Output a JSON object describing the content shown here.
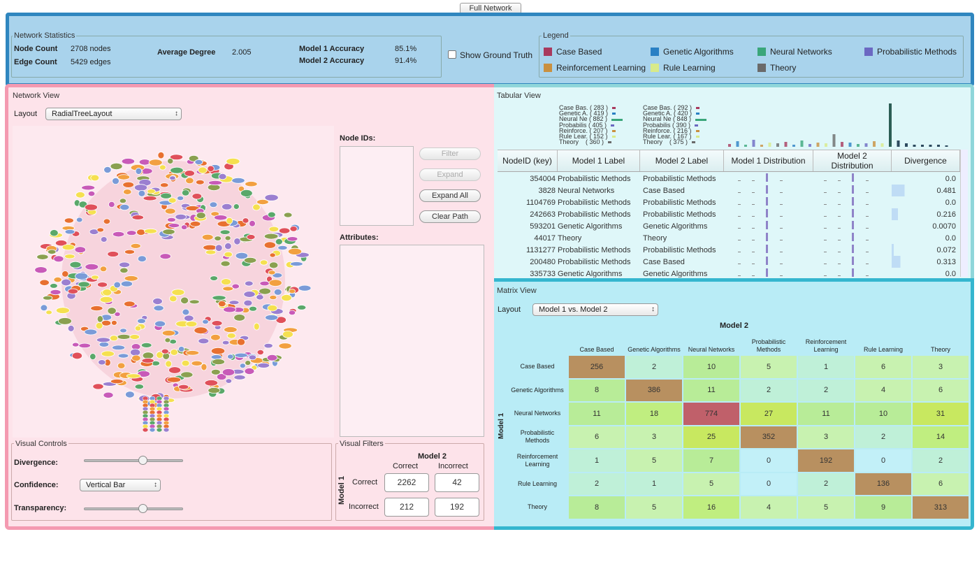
{
  "top_button": "Full Network",
  "stats": {
    "title": "Network Statistics",
    "node_count_label": "Node Count",
    "node_count_value": "2708 nodes",
    "edge_count_label": "Edge Count",
    "edge_count_value": "5429 edges",
    "avg_degree_label": "Average Degree",
    "avg_degree_value": "2.005",
    "m1_acc_label": "Model 1 Accuracy",
    "m1_acc_value": "85.1%",
    "m2_acc_label": "Model 2 Accuracy",
    "m2_acc_value": "91.4%"
  },
  "show_ground_truth": "Show Ground Truth",
  "legend": {
    "title": "Legend",
    "items": [
      {
        "label": "Case Based",
        "color": "#a83a5e"
      },
      {
        "label": "Genetic Algorithms",
        "color": "#2a80c4"
      },
      {
        "label": "Neural Networks",
        "color": "#3aa67a"
      },
      {
        "label": "Probabilistic Methods",
        "color": "#6b68c2"
      },
      {
        "label": "Reinforcement Learning",
        "color": "#c99040"
      },
      {
        "label": "Rule Learning",
        "color": "#d8ea8a"
      },
      {
        "label": "Theory",
        "color": "#6a6a6a"
      }
    ]
  },
  "network_view": {
    "title": "Network View",
    "layout_label": "Layout",
    "layout_value": "RadialTreeLayout",
    "node_ids_label": "Node IDs:",
    "attributes_label": "Attributes:",
    "buttons": {
      "filter": "Filter",
      "expand": "Expand",
      "expand_all": "Expand All",
      "clear_path": "Clear Path"
    }
  },
  "visual_controls": {
    "title": "Visual Controls",
    "divergence": "Divergence:",
    "confidence": "Confidence:",
    "confidence_value": "Vertical Bar",
    "transparency": "Transparency:",
    "divergence_level": 0.6,
    "transparency_level": 0.6
  },
  "visual_filters": {
    "title": "Visual Filters",
    "model2": "Model 2",
    "model1": "Model 1",
    "correct": "Correct",
    "incorrect": "Incorrect",
    "cc": "2262",
    "ci": "42",
    "ic": "212",
    "ii": "192"
  },
  "tabular": {
    "title": "Tabular View",
    "summary_left": [
      "Case Bas. ( 283 )",
      "Genetic A. ( 419 )",
      "Neural Ne ( 882 )",
      "Probabilis ( 405 )",
      "Reinforce. ( 207 )",
      "Rule Lear. ( 152 )",
      "Theory    ( 360 )"
    ],
    "summary_right": [
      "Case Bas. ( 292 )",
      "Genetic A. ( 420 )",
      "Neural Ne ( 848 )",
      "Probabilis ( 390 )",
      "Reinforce. ( 216 )",
      "Rule Lear. ( 167 )",
      "Theory    ( 375 )"
    ],
    "headers": [
      "NodeID (key)",
      "Model 1 Label",
      "Model 2 Label",
      "Model 1 Distribution",
      "Model 2 Distribution",
      "Divergence"
    ],
    "rows": [
      {
        "id": "354004",
        "m1": "Probabilistic Methods",
        "m2": "Probabilistic Methods",
        "div": "0.0"
      },
      {
        "id": "3828",
        "m1": "Neural Networks",
        "m2": "Case Based",
        "div": "0.481"
      },
      {
        "id": "1104769",
        "m1": "Probabilistic Methods",
        "m2": "Probabilistic Methods",
        "div": "0.0"
      },
      {
        "id": "242663",
        "m1": "Probabilistic Methods",
        "m2": "Probabilistic Methods",
        "div": "0.216"
      },
      {
        "id": "593201",
        "m1": "Genetic Algorithms",
        "m2": "Genetic Algorithms",
        "div": "0.0070"
      },
      {
        "id": "44017",
        "m1": "Theory",
        "m2": "Theory",
        "div": "0.0"
      },
      {
        "id": "1131277",
        "m1": "Probabilistic Methods",
        "m2": "Probabilistic Methods",
        "div": "0.072"
      },
      {
        "id": "200480",
        "m1": "Probabilistic Methods",
        "m2": "Case Based",
        "div": "0.313"
      },
      {
        "id": "335733",
        "m1": "Genetic Algorithms",
        "m2": "Genetic Algorithms",
        "div": "0.0"
      }
    ]
  },
  "matrix": {
    "title": "Matrix View",
    "layout_label": "Layout",
    "layout_value": "Model 1 vs. Model 2",
    "col_axis": "Model 2",
    "row_axis": "Model 1",
    "cols": [
      "Case Based",
      "Genetic Algorithms",
      "Neural Networks",
      "Probabilistic Methods",
      "Reinforcement Learning",
      "Rule Learning",
      "Theory"
    ],
    "rows": [
      "Case Based",
      "Genetic Algorithms",
      "Neural Networks",
      "Probabilistic Methods",
      "Reinforcement Learning",
      "Rule Learning",
      "Theory"
    ],
    "values": [
      [
        256,
        2,
        10,
        5,
        1,
        6,
        3
      ],
      [
        8,
        386,
        11,
        2,
        2,
        4,
        6
      ],
      [
        11,
        18,
        774,
        27,
        11,
        10,
        31
      ],
      [
        6,
        3,
        25,
        352,
        3,
        2,
        14
      ],
      [
        1,
        5,
        7,
        0,
        192,
        0,
        2
      ],
      [
        2,
        1,
        5,
        0,
        2,
        136,
        6
      ],
      [
        8,
        5,
        16,
        4,
        5,
        9,
        313
      ]
    ]
  }
}
